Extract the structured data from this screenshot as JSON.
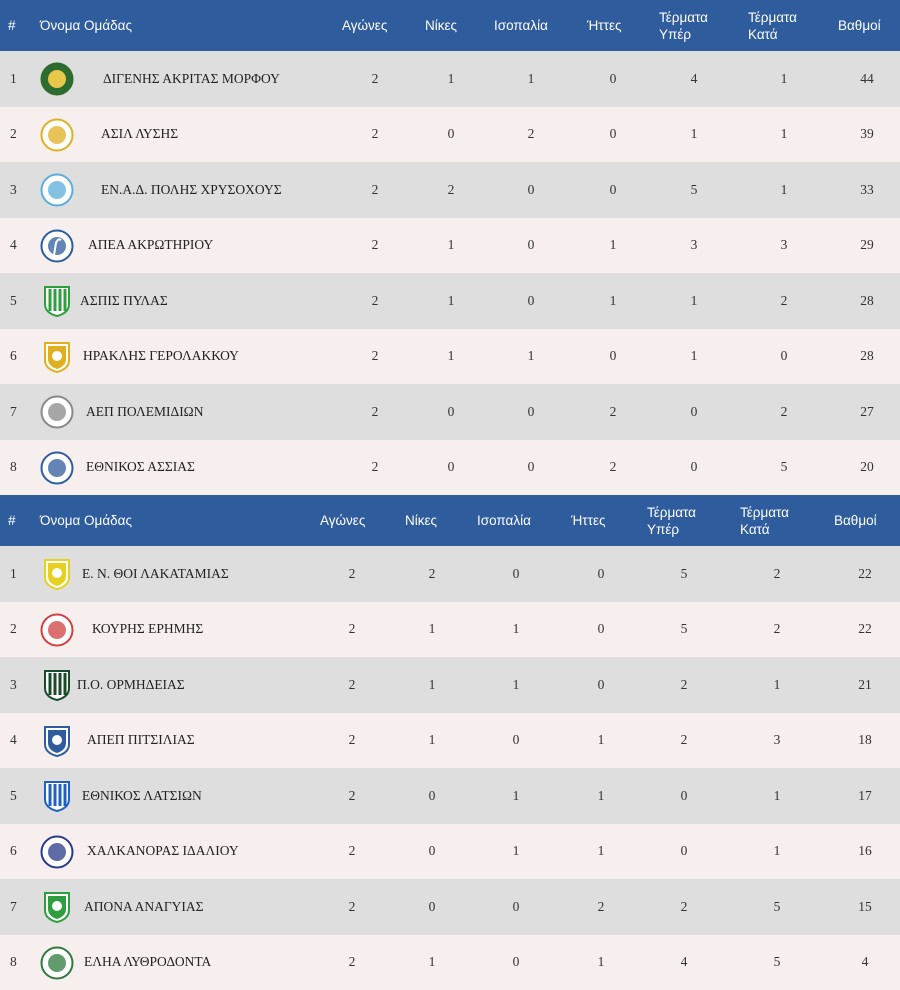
{
  "header": {
    "pos": "#",
    "team": "Όνομα Ομάδας",
    "played": "Αγώνες",
    "wins": "Νίκες",
    "draws": "Ισοπαλία",
    "losses": "Ήττες",
    "gf1": "Τέρματα",
    "gf2": "Υπέρ",
    "ga1": "Τέρματα",
    "ga2": "Κατά",
    "pts": "Βαθμοί"
  },
  "group1": [
    {
      "pos": "1",
      "name": "ΔΙΓΕΝΗΣ ΑΚΡΙΤΑΣ ΜΟΡΦΟΥ",
      "played": "2",
      "wins": "1",
      "draws": "1",
      "losses": "0",
      "gf": "4",
      "ga": "1",
      "pts": "44",
      "logo_color": "#2e6b2e",
      "logo_icon": "eagle-badge-icon"
    },
    {
      "pos": "2",
      "name": "ΑΣΙΛ ΛΥΣΗΣ",
      "played": "2",
      "wins": "0",
      "draws": "2",
      "losses": "0",
      "gf": "1",
      "ga": "1",
      "pts": "39",
      "logo_color": "#e0b020",
      "logo_icon": "round-crest-icon"
    },
    {
      "pos": "3",
      "name": "ΕΝ.Α.Δ. ΠΟΛΗΣ ΧΡΥΣΟΧΟΥΣ",
      "played": "2",
      "wins": "2",
      "draws": "0",
      "losses": "0",
      "gf": "5",
      "ga": "1",
      "pts": "33",
      "logo_color": "#5aaedc",
      "logo_icon": "round-crest-icon"
    },
    {
      "pos": "4",
      "name": "ΑΠΕΑ ΑΚΡΩΤΗΡΙΟΥ",
      "played": "2",
      "wins": "1",
      "draws": "0",
      "losses": "1",
      "gf": "3",
      "ga": "3",
      "pts": "29",
      "logo_color": "#2f5c9c",
      "logo_icon": "flamingo-crest-icon"
    },
    {
      "pos": "5",
      "name": "ΑΣΠΙΣ ΠΥΛΑΣ",
      "played": "2",
      "wins": "1",
      "draws": "0",
      "losses": "1",
      "gf": "1",
      "ga": "2",
      "pts": "28",
      "logo_color": "#2e9e3e",
      "logo_icon": "striped-shield-icon"
    },
    {
      "pos": "6",
      "name": "ΗΡΑΚΛΗΣ ΓΕΡΟΛΑΚΚΟΥ",
      "played": "2",
      "wins": "1",
      "draws": "1",
      "losses": "0",
      "gf": "1",
      "ga": "0",
      "pts": "28",
      "logo_color": "#e0b020",
      "logo_icon": "shield-crest-icon"
    },
    {
      "pos": "7",
      "name": "ΑΕΠ ΠΟΛΕΜΙΔΙΩΝ",
      "played": "2",
      "wins": "0",
      "draws": "0",
      "losses": "2",
      "gf": "0",
      "ga": "2",
      "pts": "27",
      "logo_color": "#888888",
      "logo_icon": "round-crest-icon"
    },
    {
      "pos": "8",
      "name": "ΕΘΝΙΚΟΣ ΑΣΣΙΑΣ",
      "played": "2",
      "wins": "0",
      "draws": "0",
      "losses": "2",
      "gf": "0",
      "ga": "5",
      "pts": "20",
      "logo_color": "#2f5c9c",
      "logo_icon": "round-crest-icon"
    }
  ],
  "group2": [
    {
      "pos": "1",
      "name": "Ε. Ν. ΘΟΙ ΛΑΚΑΤΑΜΙΑΣ",
      "played": "2",
      "wins": "2",
      "draws": "0",
      "losses": "0",
      "gf": "5",
      "ga": "2",
      "pts": "22",
      "logo_color": "#e8d020",
      "logo_icon": "shield-crest-icon"
    },
    {
      "pos": "2",
      "name": "ΚΟΥΡΗΣ ΕΡΗΜΗΣ",
      "played": "2",
      "wins": "1",
      "draws": "1",
      "losses": "0",
      "gf": "5",
      "ga": "2",
      "pts": "22",
      "logo_color": "#d04040",
      "logo_icon": "round-crest-icon"
    },
    {
      "pos": "3",
      "name": "Π.Ο. ΟΡΜΗΔΕΙΑΣ",
      "played": "2",
      "wins": "1",
      "draws": "1",
      "losses": "0",
      "gf": "2",
      "ga": "1",
      "pts": "21",
      "logo_color": "#1a4a2a",
      "logo_icon": "striped-shield-icon"
    },
    {
      "pos": "4",
      "name": "ΑΠΕΠ ΠΙΤΣΙΛΙΑΣ",
      "played": "2",
      "wins": "1",
      "draws": "0",
      "losses": "1",
      "gf": "2",
      "ga": "3",
      "pts": "18",
      "logo_color": "#2f5c9c",
      "logo_icon": "shield-crest-icon"
    },
    {
      "pos": "5",
      "name": "ΕΘΝΙΚΟΣ ΛΑΤΣΙΩΝ",
      "played": "2",
      "wins": "0",
      "draws": "1",
      "losses": "1",
      "gf": "0",
      "ga": "1",
      "pts": "17",
      "logo_color": "#2060c0",
      "logo_icon": "striped-shield-icon"
    },
    {
      "pos": "6",
      "name": "ΧΑΛΚΑΝΟΡΑΣ ΙΔΑΛΙΟΥ",
      "played": "2",
      "wins": "0",
      "draws": "1",
      "losses": "1",
      "gf": "0",
      "ga": "1",
      "pts": "16",
      "logo_color": "#2a3a8a",
      "logo_icon": "round-crest-icon"
    },
    {
      "pos": "7",
      "name": "ΑΠΟΝΑ ΑΝΑΓΥΙΑΣ",
      "played": "2",
      "wins": "0",
      "draws": "0",
      "losses": "2",
      "gf": "2",
      "ga": "5",
      "pts": "15",
      "logo_color": "#2e9e3e",
      "logo_icon": "shield-crest-icon"
    },
    {
      "pos": "8",
      "name": "ΕΛΗΑ ΛΥΘΡΟΔΟΝΤΑ",
      "played": "2",
      "wins": "1",
      "draws": "0",
      "losses": "1",
      "gf": "4",
      "ga": "5",
      "pts": "4",
      "logo_color": "#2e7a3e",
      "logo_icon": "round-crest-icon"
    }
  ]
}
